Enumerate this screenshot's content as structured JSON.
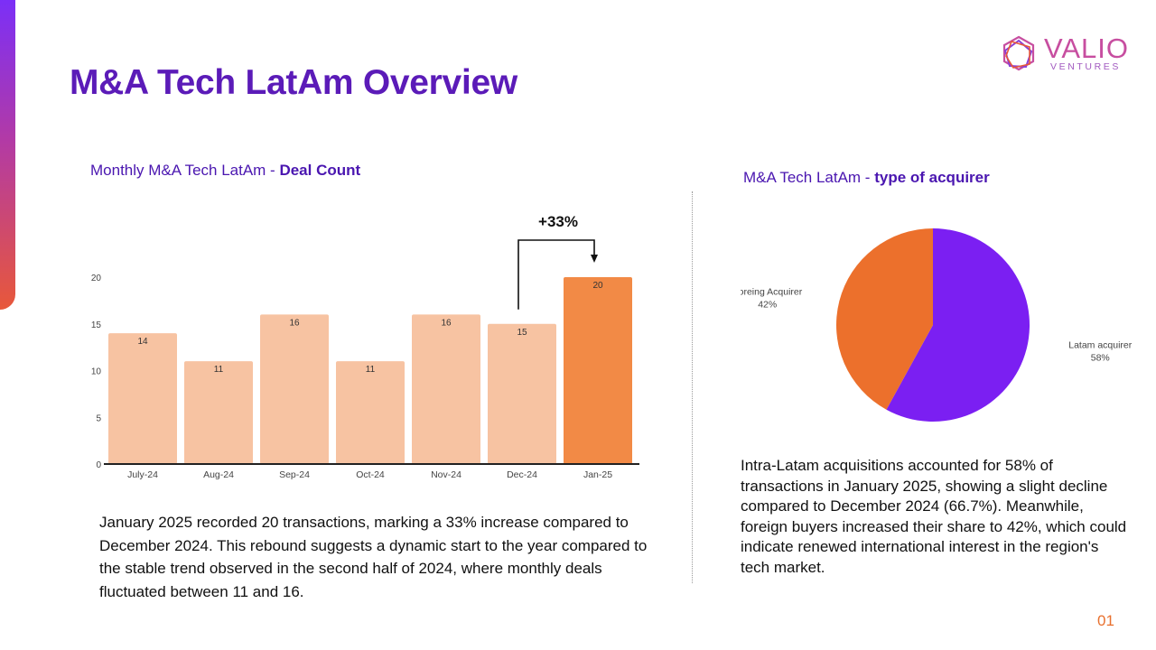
{
  "header": {
    "title_regular": "M&A Tech LatAm ",
    "title_bold": "Overview"
  },
  "logo": {
    "name": "VALIO",
    "sub": "VENTURES"
  },
  "left_panel": {
    "subtitle_regular": "Monthly M&A Tech LatAm - ",
    "subtitle_bold": "Deal Count",
    "description": "January 2025 recorded 20 transactions, marking a 33% increase compared to December 2024. This rebound suggests a dynamic start to the year compared to the stable trend observed in the second half of 2024, where monthly deals fluctuated between 11 and 16."
  },
  "right_panel": {
    "subtitle_regular": "M&A Tech LatAm - ",
    "subtitle_bold": "type of acquirer",
    "description": "Intra-Latam acquisitions accounted for 58% of transactions in January 2025, showing a slight decline compared to December 2024 (66.7%). Meanwhile, foreign buyers increased their share to 42%, which could indicate renewed international interest in the region's tech market."
  },
  "page_number": "01",
  "colors": {
    "bar_light": "#f7c3a2",
    "bar_highlight": "#f28a46",
    "pie_latam": "#7b1ff2",
    "pie_foreign": "#ec702c",
    "title": "#5b1bb8"
  },
  "chart_data": [
    {
      "type": "bar",
      "categories": [
        "July-24",
        "Aug-24",
        "Sep-24",
        "Oct-24",
        "Nov-24",
        "Dec-24",
        "Jan-25"
      ],
      "values": [
        14,
        11,
        16,
        11,
        16,
        15,
        20
      ],
      "ylim": [
        0,
        20
      ],
      "yticks": [
        0,
        5,
        10,
        15,
        20
      ],
      "highlight_index": 6,
      "annotation": "+33%",
      "grid": false,
      "legend": "none"
    },
    {
      "type": "pie",
      "slices": [
        {
          "label": "Latam acquirer",
          "value": 58,
          "value_label": "58%"
        },
        {
          "label": "Foreing Acquirer",
          "value": 42,
          "value_label": "42%"
        }
      ],
      "legend": "none"
    }
  ]
}
